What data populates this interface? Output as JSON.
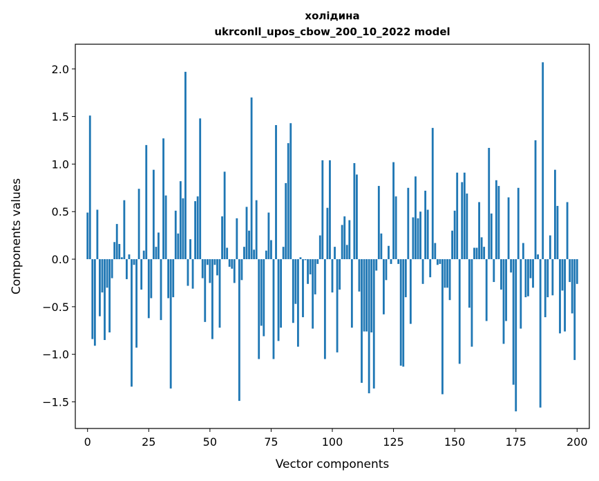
{
  "chart_data": {
    "type": "bar",
    "title": "холідина",
    "subtitle": "ukrconll_upos_cbow_200_10_2022 model",
    "xlabel": "Vector components",
    "ylabel": "Components values",
    "xlim": [
      -5,
      205
    ],
    "ylim": [
      -1.78,
      2.26
    ],
    "xticks": [
      0,
      25,
      50,
      75,
      100,
      125,
      150,
      175,
      200
    ],
    "xtick_labels": [
      "0",
      "25",
      "50",
      "75",
      "100",
      "125",
      "150",
      "175",
      "200"
    ],
    "yticks": [
      -1.5,
      -1.0,
      -0.5,
      0.0,
      0.5,
      1.0,
      1.5,
      2.0
    ],
    "ytick_labels": [
      "−1.5",
      "−1.0",
      "−0.5",
      "0.0",
      "0.5",
      "1.0",
      "1.5",
      "2.0"
    ],
    "grid": false,
    "bar_color": "#1f77b4",
    "values": [
      0.49,
      1.51,
      -0.84,
      -0.91,
      0.52,
      -0.6,
      -0.35,
      -0.85,
      -0.3,
      -0.77,
      -0.2,
      0.18,
      0.37,
      0.16,
      0.02,
      0.62,
      -0.21,
      0.05,
      -1.34,
      -0.06,
      -0.93,
      0.74,
      -0.32,
      0.09,
      1.2,
      -0.62,
      -0.41,
      0.94,
      0.13,
      0.28,
      -0.64,
      1.27,
      0.67,
      -0.41,
      -1.36,
      -0.4,
      0.51,
      0.27,
      0.82,
      0.64,
      1.97,
      -0.28,
      0.21,
      -0.31,
      0.61,
      0.66,
      1.48,
      -0.2,
      -0.66,
      -0.06,
      -0.25,
      -0.84,
      -0.06,
      -0.17,
      -0.72,
      0.45,
      0.92,
      0.12,
      -0.08,
      -0.1,
      -0.25,
      0.43,
      -1.49,
      -0.22,
      0.13,
      0.55,
      0.3,
      1.7,
      0.1,
      0.62,
      -1.05,
      -0.7,
      -0.81,
      0.09,
      0.49,
      0.2,
      -1.05,
      1.41,
      -0.86,
      -0.72,
      0.13,
      0.8,
      1.22,
      1.43,
      -0.67,
      -0.47,
      -0.92,
      0.02,
      -0.61,
      -0.01,
      -0.26,
      -0.16,
      -0.73,
      -0.37,
      -0.05,
      0.25,
      1.04,
      -1.05,
      0.54,
      1.04,
      -0.35,
      0.13,
      -0.98,
      -0.32,
      0.36,
      0.45,
      0.15,
      0.41,
      -0.72,
      1.01,
      0.89,
      -0.34,
      -1.3,
      -0.76,
      -0.76,
      -1.41,
      -0.77,
      -1.36,
      -0.12,
      0.77,
      0.27,
      -0.58,
      -0.22,
      0.14,
      -0.05,
      1.02,
      0.66,
      -0.05,
      -1.12,
      -1.13,
      -0.4,
      0.75,
      -0.68,
      0.44,
      0.87,
      0.43,
      0.5,
      -0.26,
      0.72,
      0.52,
      -0.19,
      1.38,
      0.17,
      -0.06,
      -0.05,
      -1.42,
      -0.3,
      -0.3,
      -0.43,
      0.3,
      0.51,
      0.91,
      -1.1,
      0.81,
      0.91,
      0.69,
      -0.51,
      -0.92,
      0.12,
      0.12,
      0.6,
      0.23,
      0.13,
      -0.65,
      1.17,
      0.48,
      -0.24,
      0.83,
      0.77,
      -0.32,
      -0.89,
      -0.65,
      0.65,
      -0.14,
      -1.32,
      -1.6,
      0.75,
      -0.73,
      0.17,
      -0.4,
      -0.39,
      -0.2,
      -0.3,
      1.25,
      0.05,
      -1.56,
      2.07,
      -0.61,
      -0.4,
      0.25,
      -0.38,
      0.94,
      0.56,
      -0.78,
      -0.33,
      -0.76,
      0.6,
      -0.24,
      -0.57,
      -1.06,
      -0.26
    ]
  }
}
